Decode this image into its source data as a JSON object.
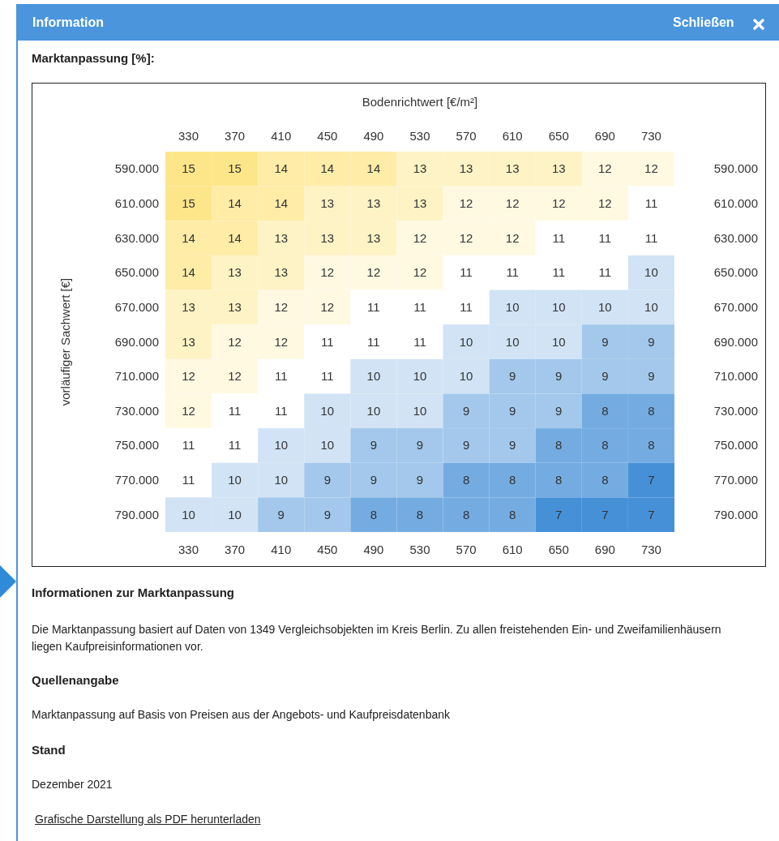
{
  "chart_data": {
    "type": "heatmap",
    "data_labels": true,
    "title": "Marktanpassung [%]:",
    "xlabel": "Bodenrichtwert [€/m²]",
    "ylabel": "vorläufiger Sachwert [€]",
    "categories": [
      "330",
      "370",
      "410",
      "450",
      "490",
      "530",
      "570",
      "610",
      "650",
      "690",
      "730"
    ],
    "y_categories": [
      "590.000",
      "610.000",
      "630.000",
      "650.000",
      "670.000",
      "690.000",
      "710.000",
      "730.000",
      "750.000",
      "770.000",
      "790.000"
    ],
    "y2_categories": [
      "590.000",
      "610.000",
      "630.000",
      "650.000",
      "670.000",
      "690.000",
      "710.000",
      "730.000",
      "750.000",
      "770.000",
      "790.000"
    ],
    "cells": [
      [
        15,
        15,
        14,
        14,
        14,
        13,
        13,
        13,
        13,
        12,
        12
      ],
      [
        15,
        14,
        14,
        13,
        13,
        13,
        12,
        12,
        12,
        12,
        11
      ],
      [
        14,
        14,
        13,
        13,
        13,
        12,
        12,
        12,
        11,
        11,
        11
      ],
      [
        14,
        13,
        13,
        12,
        12,
        12,
        11,
        11,
        11,
        11,
        10
      ],
      [
        13,
        13,
        12,
        12,
        11,
        11,
        11,
        10,
        10,
        10,
        10
      ],
      [
        13,
        12,
        12,
        11,
        11,
        11,
        10,
        10,
        10,
        9,
        9
      ],
      [
        12,
        12,
        11,
        11,
        10,
        10,
        10,
        9,
        9,
        9,
        9
      ],
      [
        12,
        11,
        11,
        10,
        10,
        10,
        9,
        9,
        9,
        8,
        8
      ],
      [
        11,
        11,
        10,
        10,
        9,
        9,
        9,
        9,
        8,
        8,
        8
      ],
      [
        11,
        10,
        10,
        9,
        9,
        9,
        8,
        8,
        8,
        8,
        7
      ],
      [
        10,
        10,
        9,
        9,
        8,
        8,
        8,
        8,
        7,
        7,
        7
      ]
    ],
    "annotations": [
      "Information",
      "Schließen",
      "Informationen zur Marktanpassung",
      "Die Marktanpassung basiert auf Daten von 1349 Vergleichsobjekten im Kreis Berlin. Zu allen freistehenden Ein- und Zweifamilienhäusern liegen Kaufpreisinformationen vor.",
      "Quellenangabe",
      "Marktanpassung auf Basis von Preisen aus der Angebots- und Kaufpreisdatenbank",
      "Stand",
      "Dezember 2021",
      "Grafische Darstellung als PDF herunterladen"
    ]
  }
}
